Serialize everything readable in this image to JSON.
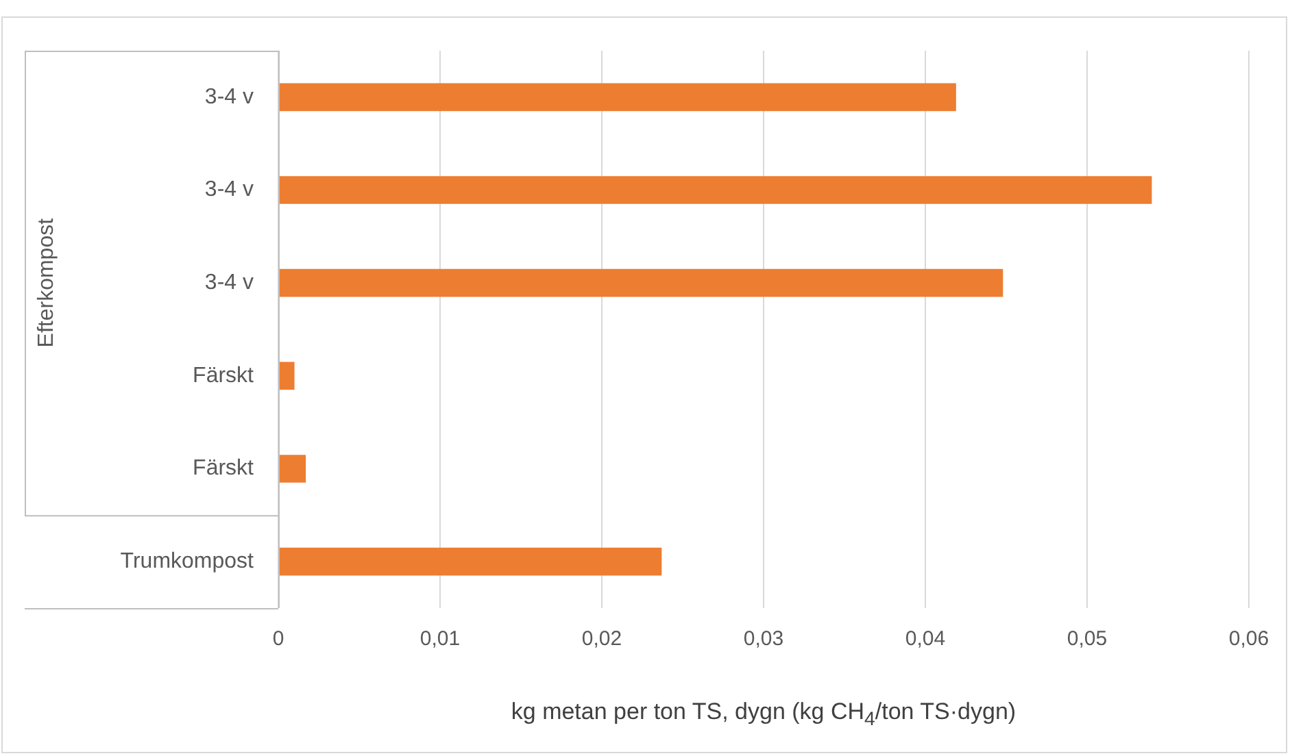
{
  "chart_data": {
    "type": "bar",
    "orientation": "horizontal",
    "xlabel": "kg metan per ton TS, dygn (kg CH$_{4}$/ton TS·dygn)",
    "ylabel": "Efterkompost",
    "categories": [
      "3-4 v",
      "3-4 v",
      "3-4 v",
      "Färskt",
      "Färskt",
      "Trumkompost"
    ],
    "values": [
      0.0419,
      0.054,
      0.0448,
      0.001,
      0.0017,
      0.0237
    ],
    "color": "#ed7d31",
    "xlim": [
      0,
      0.06
    ],
    "xticks": [
      0,
      {
        "value": 0.01,
        "label": "0,01"
      },
      {
        "value": 0.02,
        "label": "0,02"
      },
      {
        "value": 0.03,
        "label": "0,03"
      },
      {
        "value": 0.04,
        "label": "0,04"
      },
      {
        "value": 0.05,
        "label": "0,05"
      },
      {
        "value": 0.06,
        "label": "0,06"
      }
    ],
    "grid": "x",
    "legend": false
  }
}
